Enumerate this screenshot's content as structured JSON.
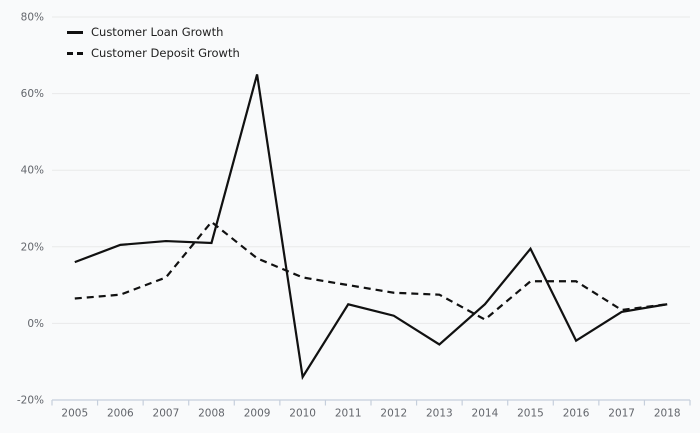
{
  "chart_data": {
    "type": "line",
    "title": "",
    "xlabel": "",
    "ylabel": "",
    "categories": [
      "2005",
      "2006",
      "2007",
      "2008",
      "2009",
      "2010",
      "2011",
      "2012",
      "2013",
      "2014",
      "2015",
      "2016",
      "2017",
      "2018"
    ],
    "series": [
      {
        "name": "Customer Loan Growth",
        "style": "solid",
        "values": [
          16,
          20.5,
          21.5,
          21,
          65,
          -14,
          5,
          2,
          -5.5,
          5,
          19.5,
          -4.5,
          3,
          5
        ]
      },
      {
        "name": "Customer Deposit Growth",
        "style": "dashed",
        "values": [
          6.5,
          7.5,
          12,
          26.5,
          17,
          12,
          10,
          8,
          7.5,
          1,
          11,
          11,
          3.5,
          5
        ]
      }
    ],
    "ylim": [
      -20,
      80
    ],
    "yticks": [
      80,
      60,
      40,
      20,
      0,
      -20
    ],
    "ytick_labels": [
      "80%",
      "60%",
      "40%",
      "20%",
      "0%",
      "-20%"
    ],
    "grid": "horizontal",
    "legend_position": "top-left"
  },
  "colors": {
    "background": "#f9fafb",
    "gridline": "#e9e9ea",
    "axis": "#c6cfdc",
    "tick_label": "#63666c",
    "line": "#111111"
  }
}
